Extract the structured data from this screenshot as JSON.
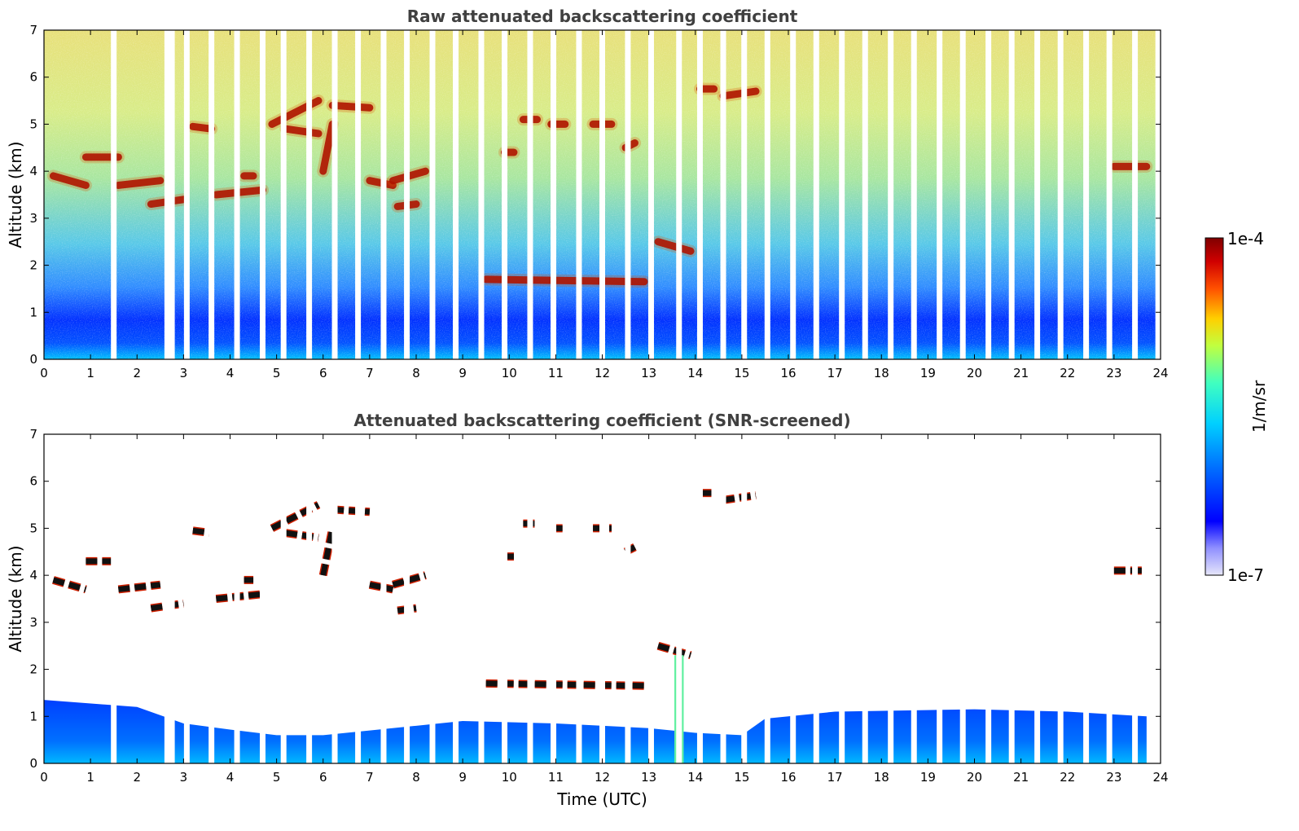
{
  "chart_data": [
    {
      "type": "heatmap",
      "title": "Raw attenuated backscattering coefficient",
      "xlabel": "",
      "ylabel": "Altitude (km)",
      "xlim": [
        0,
        24
      ],
      "ylim": [
        0,
        7
      ],
      "xticks": [
        "0",
        "1",
        "2",
        "3",
        "4",
        "5",
        "6",
        "7",
        "8",
        "9",
        "10",
        "11",
        "12",
        "13",
        "14",
        "15",
        "16",
        "17",
        "18",
        "19",
        "20",
        "21",
        "22",
        "23",
        "24"
      ],
      "yticks": [
        "0",
        "1",
        "2",
        "3",
        "4",
        "5",
        "6",
        "7"
      ],
      "noise_altitude_km": 0.5,
      "cloud_layers": [
        {
          "x": [
            0.2,
            0.9
          ],
          "y": [
            3.9,
            3.7
          ]
        },
        {
          "x": [
            0.9,
            1.6
          ],
          "y": [
            4.3,
            4.3
          ]
        },
        {
          "x": [
            1.6,
            2.5
          ],
          "y": [
            3.7,
            3.8
          ]
        },
        {
          "x": [
            2.3,
            3.0
          ],
          "y": [
            3.3,
            3.4
          ]
        },
        {
          "x": [
            3.2,
            3.6
          ],
          "y": [
            4.95,
            4.9
          ]
        },
        {
          "x": [
            3.7,
            4.7
          ],
          "y": [
            3.5,
            3.6
          ]
        },
        {
          "x": [
            4.3,
            4.5
          ],
          "y": [
            3.9,
            3.9
          ]
        },
        {
          "x": [
            4.9,
            5.9
          ],
          "y": [
            5.0,
            5.5
          ]
        },
        {
          "x": [
            5.2,
            5.9
          ],
          "y": [
            4.9,
            4.8
          ]
        },
        {
          "x": [
            6.2,
            7.0
          ],
          "y": [
            5.4,
            5.35
          ]
        },
        {
          "x": [
            6.0,
            6.2
          ],
          "y": [
            4.0,
            5.0
          ]
        },
        {
          "x": [
            7.0,
            7.5
          ],
          "y": [
            3.8,
            3.7
          ]
        },
        {
          "x": [
            7.5,
            8.2
          ],
          "y": [
            3.8,
            4.0
          ]
        },
        {
          "x": [
            7.6,
            8.0
          ],
          "y": [
            3.25,
            3.3
          ]
        },
        {
          "x": [
            9.9,
            10.1
          ],
          "y": [
            4.4,
            4.4
          ]
        },
        {
          "x": [
            10.3,
            10.6
          ],
          "y": [
            5.1,
            5.1
          ]
        },
        {
          "x": [
            10.9,
            11.2
          ],
          "y": [
            5.0,
            5.0
          ]
        },
        {
          "x": [
            11.8,
            12.2
          ],
          "y": [
            5.0,
            5.0
          ]
        },
        {
          "x": [
            12.5,
            12.7
          ],
          "y": [
            4.5,
            4.6
          ]
        },
        {
          "x": [
            14.1,
            14.4
          ],
          "y": [
            5.75,
            5.75
          ]
        },
        {
          "x": [
            14.6,
            15.3
          ],
          "y": [
            5.6,
            5.7
          ]
        },
        {
          "x": [
            13.2,
            13.9
          ],
          "y": [
            2.5,
            2.3
          ]
        },
        {
          "x": [
            9.5,
            12.9
          ],
          "y": [
            1.7,
            1.65
          ]
        },
        {
          "x": [
            23.0,
            23.7
          ],
          "y": [
            4.1,
            4.1
          ]
        }
      ],
      "profile_gaps_utc": [
        1.5,
        2.65,
        2.75,
        3.07,
        3.6,
        4.15,
        4.7,
        5.15,
        5.7,
        6.25,
        6.75,
        7.3,
        7.8,
        8.35,
        8.85,
        9.4,
        9.9,
        10.45,
        10.95,
        11.5,
        12.0,
        12.55,
        13.05,
        13.65,
        14.1,
        14.6,
        15.05,
        15.55,
        16.1,
        16.6,
        17.15,
        17.65,
        18.2,
        18.7,
        19.25,
        19.75,
        20.3,
        20.8,
        21.35,
        21.85,
        22.4,
        22.9,
        23.45,
        23.95
      ]
    },
    {
      "type": "heatmap",
      "title": "Attenuated backscattering coefficient (SNR-screened)",
      "xlabel": "Time (UTC)",
      "ylabel": "Altitude (km)",
      "xlim": [
        0,
        24
      ],
      "ylim": [
        0,
        7
      ],
      "xticks": [
        "0",
        "1",
        "2",
        "3",
        "4",
        "5",
        "6",
        "7",
        "8",
        "9",
        "10",
        "11",
        "12",
        "13",
        "14",
        "15",
        "16",
        "17",
        "18",
        "19",
        "20",
        "21",
        "22",
        "23",
        "24"
      ],
      "yticks": [
        "0",
        "1",
        "2",
        "3",
        "4",
        "5",
        "6",
        "7"
      ],
      "boundary_layer_top_km": [
        {
          "x": 0,
          "y": 1.35
        },
        {
          "x": 2,
          "y": 1.2
        },
        {
          "x": 3,
          "y": 0.85
        },
        {
          "x": 4,
          "y": 0.72
        },
        {
          "x": 5,
          "y": 0.6
        },
        {
          "x": 6,
          "y": 0.6
        },
        {
          "x": 7,
          "y": 0.7
        },
        {
          "x": 8,
          "y": 0.8
        },
        {
          "x": 9,
          "y": 0.9
        },
        {
          "x": 11,
          "y": 0.85
        },
        {
          "x": 13,
          "y": 0.75
        },
        {
          "x": 14,
          "y": 0.65
        },
        {
          "x": 15,
          "y": 0.6
        },
        {
          "x": 15.5,
          "y": 0.95
        },
        {
          "x": 17,
          "y": 1.1
        },
        {
          "x": 20,
          "y": 1.15
        },
        {
          "x": 22,
          "y": 1.1
        },
        {
          "x": 23.7,
          "y": 1.0
        }
      ],
      "rain_column": {
        "x": [
          13.55,
          13.75
        ],
        "y": [
          0,
          2.3
        ]
      }
    }
  ],
  "colorbar": {
    "label": "1/m/sr",
    "max_label": "1e-4",
    "min_label": "1e-7",
    "scale": "log",
    "colormap": [
      "#e6e6fa",
      "#0000ff",
      "#0070ff",
      "#00d0ff",
      "#40ffc0",
      "#c0ff40",
      "#ffd000",
      "#ff5000",
      "#b00000",
      "#800000"
    ]
  }
}
